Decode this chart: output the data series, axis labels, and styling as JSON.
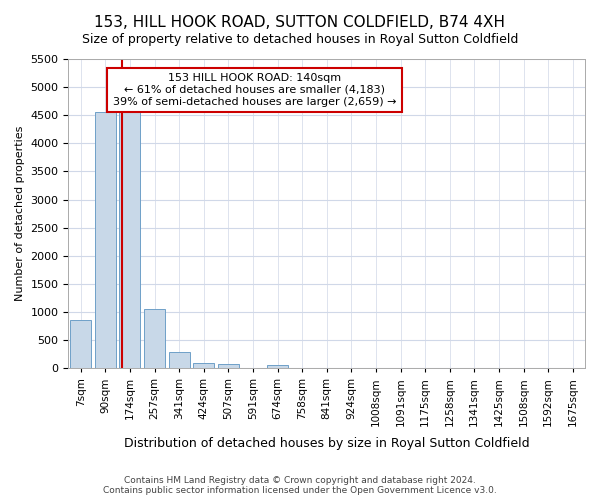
{
  "title": "153, HILL HOOK ROAD, SUTTON COLDFIELD, B74 4XH",
  "subtitle": "Size of property relative to detached houses in Royal Sutton Coldfield",
  "xlabel": "Distribution of detached houses by size in Royal Sutton Coldfield",
  "ylabel": "Number of detached properties",
  "footnote": "Contains HM Land Registry data © Crown copyright and database right 2024.\nContains public sector information licensed under the Open Government Licence v3.0.",
  "bin_labels": [
    "7sqm",
    "90sqm",
    "174sqm",
    "257sqm",
    "341sqm",
    "424sqm",
    "507sqm",
    "591sqm",
    "674sqm",
    "758sqm",
    "841sqm",
    "924sqm",
    "1008sqm",
    "1091sqm",
    "1175sqm",
    "1258sqm",
    "1341sqm",
    "1425sqm",
    "1508sqm",
    "1592sqm",
    "1675sqm"
  ],
  "bar_heights": [
    855,
    4560,
    4570,
    1060,
    280,
    85,
    80,
    0,
    55,
    0,
    0,
    0,
    0,
    0,
    0,
    0,
    0,
    0,
    0,
    0,
    0
  ],
  "bar_color": "#c8d8e8",
  "bar_edgecolor": "#6fa0c8",
  "vline_color": "#cc0000",
  "vline_pos": 1.67,
  "ylim": [
    0,
    5500
  ],
  "yticks": [
    0,
    500,
    1000,
    1500,
    2000,
    2500,
    3000,
    3500,
    4000,
    4500,
    5000,
    5500
  ],
  "annotation_text": "153 HILL HOOK ROAD: 140sqm\n← 61% of detached houses are smaller (4,183)\n39% of semi-detached houses are larger (2,659) →",
  "annotation_box_edgecolor": "#cc0000",
  "annotation_box_facecolor": "#ffffff",
  "bg_color": "#ffffff",
  "grid_color": "#d0d8e8"
}
